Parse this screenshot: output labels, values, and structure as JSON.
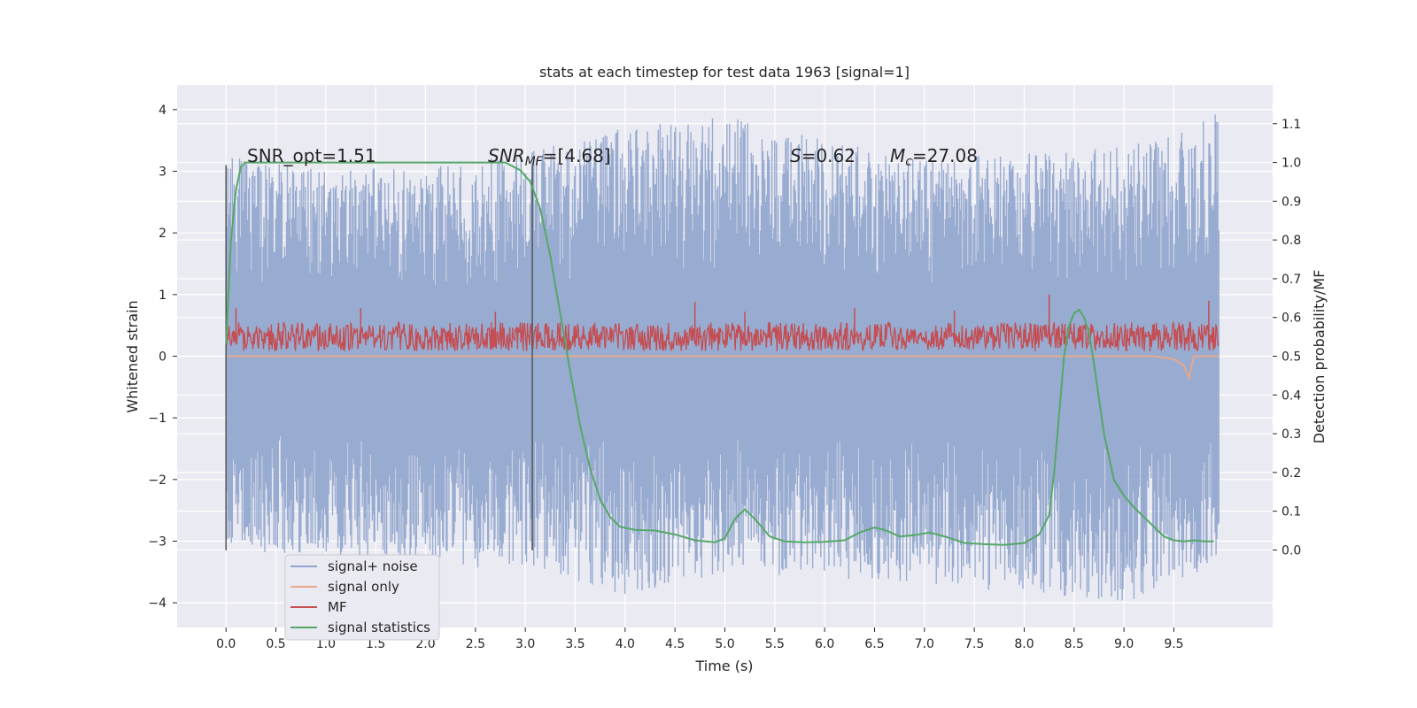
{
  "chart_data": {
    "type": "line",
    "title": "stats at each timestep for test data 1963 [signal=1]",
    "xlabel": "Time (s)",
    "ylabel_left": "Whitened strain",
    "ylabel_right": "Detection probability/MF",
    "xlim": [
      -0.49,
      10.49
    ],
    "ylim_left": [
      -4.4,
      4.4
    ],
    "ylim_right": [
      -0.2,
      1.2
    ],
    "x_ticks": [
      "0.0",
      "0.5",
      "1.0",
      "1.5",
      "2.0",
      "2.5",
      "3.0",
      "3.5",
      "4.0",
      "4.5",
      "5.0",
      "5.5",
      "6.0",
      "6.5",
      "7.0",
      "7.5",
      "8.0",
      "8.5",
      "9.0",
      "9.5"
    ],
    "y_ticks_left": [
      "−4",
      "−3",
      "−2",
      "−1",
      "0",
      "1",
      "2",
      "3",
      "4"
    ],
    "y_ticks_right": [
      "0.0",
      "0.1",
      "0.2",
      "0.3",
      "0.4",
      "0.5",
      "0.6",
      "0.7",
      "0.8",
      "0.9",
      "1.0",
      "1.1"
    ],
    "grid": true,
    "legend_position": "lower-left",
    "annotations": {
      "snr_opt": "SNR_opt=1.51",
      "snr_mf_label": "SNR",
      "snr_mf_sub": "MF",
      "snr_mf_value": "=[4.68]",
      "s_label": "S",
      "s_value": "=0.62",
      "mc_label": "M",
      "mc_sub": "c",
      "mc_value": "=27.08"
    },
    "vertical_lines_x": [
      0.0,
      3.07
    ],
    "series": [
      {
        "name": "signal+ noise",
        "axis": "left",
        "color": "#8fa4cc",
        "description_range": [
          -4.0,
          3.95
        ],
        "envelope": {
          "x": [
            0.0,
            1.0,
            2.0,
            3.0,
            4.0,
            5.0,
            6.0,
            7.0,
            8.0,
            9.0,
            9.95
          ],
          "upper": [
            3.3,
            3.0,
            3.1,
            3.3,
            3.7,
            3.9,
            3.5,
            3.2,
            3.3,
            3.4,
            3.95
          ],
          "lower": [
            -3.2,
            -3.2,
            -3.5,
            -3.4,
            -3.9,
            -3.5,
            -3.6,
            -3.7,
            -3.85,
            -4.0,
            -3.4
          ]
        }
      },
      {
        "name": "signal only",
        "axis": "left",
        "color": "#e8a88c",
        "x": [
          0.0,
          9.3,
          9.5,
          9.6,
          9.65,
          9.7,
          9.95
        ],
        "y": [
          0.0,
          0.0,
          -0.05,
          -0.15,
          -0.35,
          0.0,
          0.0
        ]
      },
      {
        "name": "MF",
        "axis": "left",
        "color": "#c44e52",
        "band": [
          0.0,
          0.55
        ],
        "spikes": [
          {
            "x": 0.1,
            "y": 0.78
          },
          {
            "x": 1.35,
            "y": 0.78
          },
          {
            "x": 2.7,
            "y": 0.72
          },
          {
            "x": 4.7,
            "y": 0.88
          },
          {
            "x": 5.2,
            "y": 0.72
          },
          {
            "x": 6.3,
            "y": 0.78
          },
          {
            "x": 7.3,
            "y": 0.74
          },
          {
            "x": 8.25,
            "y": 1.0
          },
          {
            "x": 9.85,
            "y": 0.9
          }
        ]
      },
      {
        "name": "signal statistics",
        "axis": "right",
        "color": "#55a868",
        "x": [
          0.0,
          0.05,
          0.1,
          0.15,
          0.2,
          0.5,
          1.0,
          2.0,
          2.8,
          2.95,
          3.05,
          3.15,
          3.25,
          3.35,
          3.45,
          3.55,
          3.65,
          3.75,
          3.85,
          3.95,
          4.1,
          4.3,
          4.5,
          4.7,
          4.9,
          5.0,
          5.1,
          5.2,
          5.3,
          5.45,
          5.6,
          5.8,
          6.0,
          6.2,
          6.35,
          6.5,
          6.6,
          6.75,
          6.9,
          7.05,
          7.2,
          7.4,
          7.6,
          7.8,
          8.0,
          8.15,
          8.25,
          8.3,
          8.35,
          8.4,
          8.45,
          8.5,
          8.55,
          8.6,
          8.65,
          8.7,
          8.8,
          8.9,
          9.0,
          9.1,
          9.2,
          9.3,
          9.4,
          9.5,
          9.6,
          9.7,
          9.8,
          9.9
        ],
        "y": [
          0.53,
          0.8,
          0.93,
          0.99,
          1.0,
          1.0,
          1.0,
          1.0,
          1.0,
          0.98,
          0.95,
          0.88,
          0.76,
          0.61,
          0.46,
          0.32,
          0.21,
          0.13,
          0.085,
          0.06,
          0.052,
          0.05,
          0.04,
          0.025,
          0.02,
          0.03,
          0.08,
          0.105,
          0.08,
          0.035,
          0.022,
          0.02,
          0.021,
          0.025,
          0.045,
          0.058,
          0.052,
          0.035,
          0.038,
          0.045,
          0.035,
          0.018,
          0.015,
          0.013,
          0.018,
          0.04,
          0.09,
          0.2,
          0.35,
          0.5,
          0.58,
          0.61,
          0.62,
          0.6,
          0.56,
          0.48,
          0.3,
          0.18,
          0.14,
          0.11,
          0.085,
          0.06,
          0.035,
          0.025,
          0.022,
          0.025,
          0.022,
          0.022
        ]
      }
    ]
  }
}
